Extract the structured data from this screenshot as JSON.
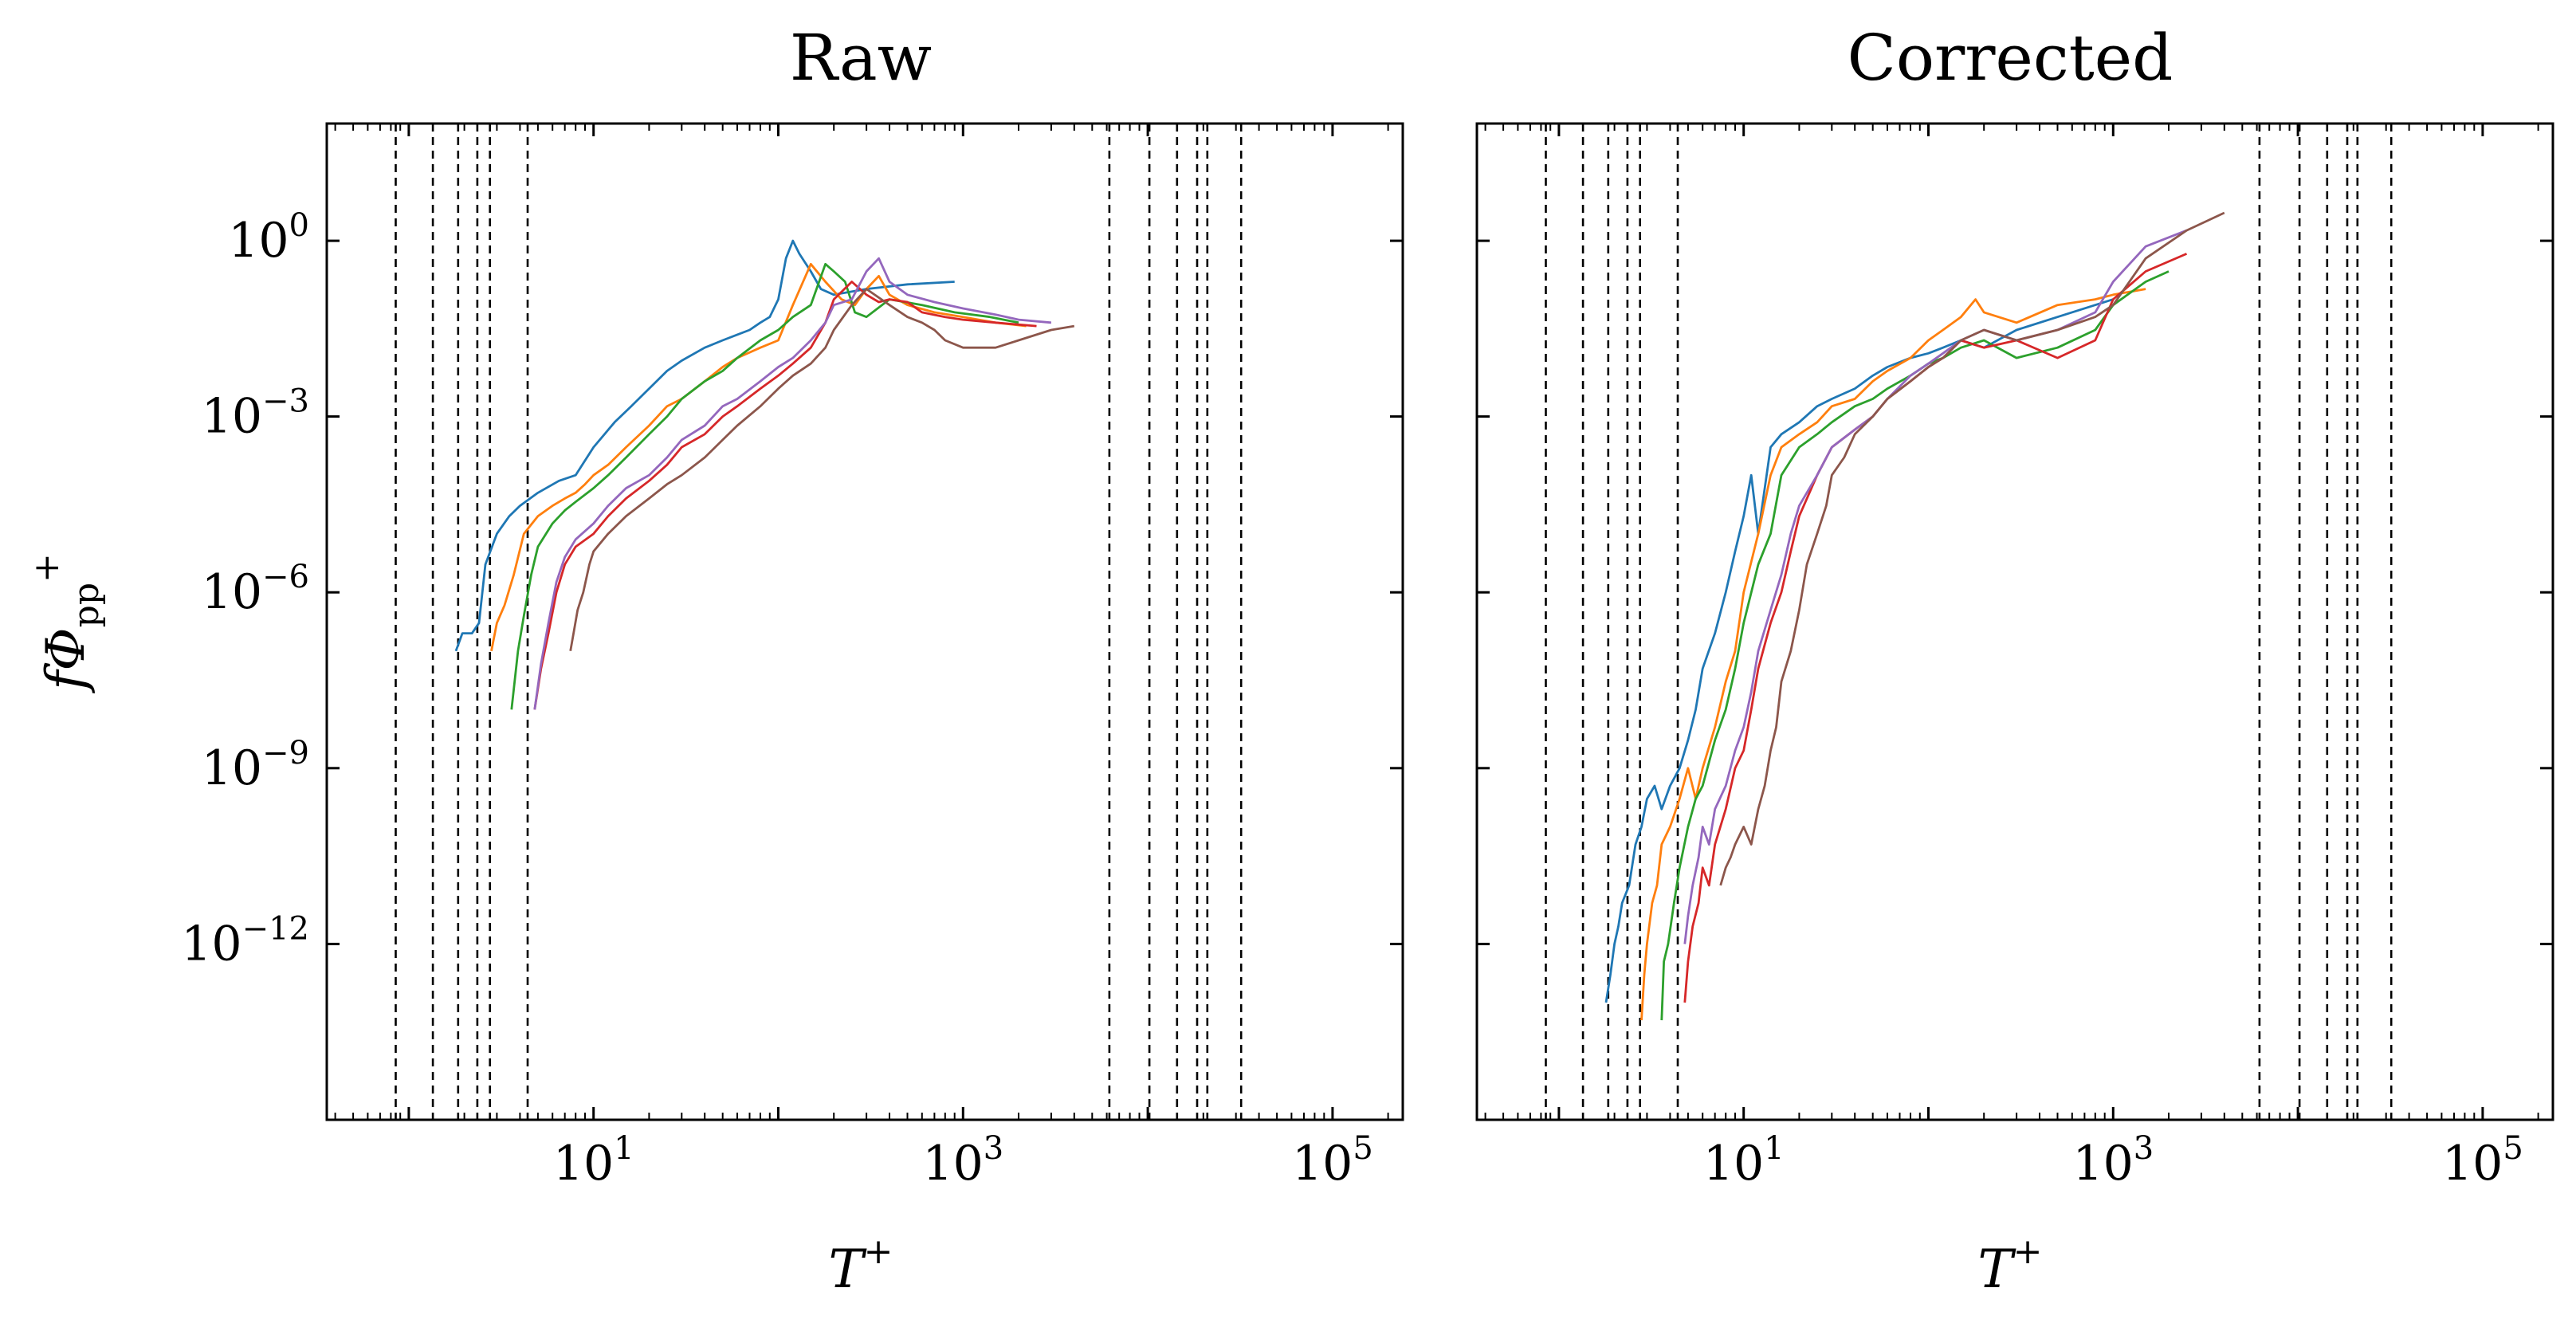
{
  "chart_data": [
    {
      "type": "line",
      "title": "Raw",
      "xlabel": "T",
      "xlabel_sup": "+",
      "ylabel": "fΦ",
      "ylabel_sub": "pp",
      "ylabel_sup": "+",
      "xscale": "log",
      "yscale": "log",
      "xlim": [
        0.36,
        240000
      ],
      "ylim": [
        1e-15,
        100.0
      ],
      "x_ticks": [
        {
          "base": "10",
          "exp": "1",
          "value": 10
        },
        {
          "base": "10",
          "exp": "3",
          "value": 1000
        },
        {
          "base": "10",
          "exp": "5",
          "value": 100000
        }
      ],
      "y_ticks": [
        {
          "base": "10",
          "exp": "0",
          "value": 1
        },
        {
          "base": "10",
          "exp": "−3",
          "value": 0.001
        },
        {
          "base": "10",
          "exp": "−6",
          "value": 1e-06
        },
        {
          "base": "10",
          "exp": "−9",
          "value": 1e-09
        },
        {
          "base": "10",
          "exp": "−12",
          "value": 1e-12
        }
      ],
      "grid": false,
      "legend": "none",
      "vertical_lines": [
        0.85,
        1.35,
        1.85,
        2.35,
        2.75,
        4.4,
        6200,
        10200,
        14400,
        18500,
        21000,
        32000
      ],
      "series": [
        {
          "color": "#1f77b4",
          "x": [
            1.8,
            1.95,
            2.2,
            2.4,
            2.6,
            3.0,
            3.5,
            4.0,
            5.0,
            6.5,
            8.0,
            10,
            13,
            16,
            20,
            25,
            30,
            40,
            50,
            60,
            70,
            80,
            90,
            100,
            110,
            120,
            130,
            150,
            170,
            200,
            300,
            500,
            900
          ],
          "y": [
            1e-07,
            2e-07,
            2e-07,
            3e-07,
            3e-06,
            1e-05,
            2e-05,
            3e-05,
            5e-05,
            8e-05,
            0.0001,
            0.0003,
            0.0008,
            0.0015,
            0.003,
            0.006,
            0.009,
            0.015,
            0.02,
            0.025,
            0.03,
            0.04,
            0.05,
            0.1,
            0.5,
            1.0,
            0.6,
            0.3,
            0.15,
            0.12,
            0.15,
            0.18,
            0.2
          ]
        },
        {
          "color": "#ff7f0e",
          "x": [
            2.8,
            3.0,
            3.3,
            3.7,
            4.2,
            5.0,
            6.0,
            7.0,
            8.0,
            9.0,
            10,
            12,
            15,
            20,
            25,
            30,
            40,
            50,
            60,
            80,
            100,
            120,
            150,
            180,
            220,
            260,
            300,
            350,
            400,
            500,
            700,
            1000,
            1500,
            2200
          ],
          "y": [
            1e-07,
            3e-07,
            6e-07,
            2e-06,
            1e-05,
            2e-05,
            3e-05,
            4e-05,
            5e-05,
            7e-05,
            0.0001,
            0.00015,
            0.0003,
            0.0007,
            0.0015,
            0.002,
            0.004,
            0.007,
            0.01,
            0.015,
            0.02,
            0.08,
            0.4,
            0.2,
            0.1,
            0.08,
            0.15,
            0.25,
            0.12,
            0.08,
            0.06,
            0.05,
            0.04,
            0.035
          ]
        },
        {
          "color": "#2ca02c",
          "x": [
            3.6,
            3.9,
            4.2,
            4.6,
            5.0,
            6.0,
            7.0,
            8.0,
            10,
            12,
            15,
            20,
            25,
            30,
            40,
            50,
            60,
            80,
            100,
            120,
            150,
            180,
            200,
            230,
            260,
            300,
            400,
            600,
            900,
            1400,
            2000
          ],
          "y": [
            1e-08,
            1e-07,
            4e-07,
            2e-06,
            6e-06,
            1.5e-05,
            2.5e-05,
            3.5e-05,
            6e-05,
            0.0001,
            0.0002,
            0.0005,
            0.001,
            0.002,
            0.004,
            0.006,
            0.01,
            0.02,
            0.03,
            0.05,
            0.08,
            0.4,
            0.3,
            0.2,
            0.06,
            0.05,
            0.1,
            0.08,
            0.06,
            0.05,
            0.04
          ]
        },
        {
          "color": "#d62728",
          "x": [
            4.8,
            5.2,
            5.7,
            6.3,
            7.0,
            8.0,
            10,
            12,
            15,
            20,
            25,
            30,
            40,
            50,
            60,
            80,
            100,
            120,
            150,
            180,
            200,
            250,
            300,
            350,
            400,
            500,
            600,
            800,
            1000,
            1500,
            2500
          ],
          "y": [
            1e-08,
            5e-08,
            2e-07,
            1e-06,
            3e-06,
            6e-06,
            1e-05,
            2e-05,
            4e-05,
            8e-05,
            0.00015,
            0.0003,
            0.0005,
            0.001,
            0.0015,
            0.003,
            0.005,
            0.008,
            0.015,
            0.04,
            0.1,
            0.2,
            0.12,
            0.09,
            0.1,
            0.09,
            0.06,
            0.05,
            0.045,
            0.04,
            0.035
          ]
        },
        {
          "color": "#9467bd",
          "x": [
            4.8,
            5.2,
            5.7,
            6.3,
            7.0,
            8.0,
            10,
            12,
            15,
            20,
            25,
            30,
            40,
            50,
            60,
            80,
            100,
            120,
            150,
            180,
            200,
            250,
            300,
            350,
            400,
            500,
            700,
            1000,
            1500,
            2000,
            3000
          ],
          "y": [
            1e-08,
            6e-08,
            3e-07,
            1.5e-06,
            4e-06,
            8e-06,
            1.5e-05,
            3e-05,
            6e-05,
            0.0001,
            0.0002,
            0.0004,
            0.0007,
            0.0015,
            0.002,
            0.004,
            0.007,
            0.01,
            0.02,
            0.04,
            0.08,
            0.1,
            0.3,
            0.5,
            0.2,
            0.12,
            0.09,
            0.07,
            0.055,
            0.045,
            0.04
          ]
        },
        {
          "color": "#8c564b",
          "x": [
            7.5,
            7.8,
            8.2,
            8.8,
            9.5,
            10,
            12,
            15,
            20,
            25,
            30,
            40,
            50,
            60,
            80,
            100,
            120,
            150,
            180,
            200,
            250,
            300,
            400,
            500,
            600,
            700,
            800,
            1000,
            1500,
            2000,
            3000,
            4000
          ],
          "y": [
            1e-07,
            2e-07,
            5e-07,
            1e-06,
            3e-06,
            5e-06,
            1e-05,
            2e-05,
            4e-05,
            7e-05,
            0.0001,
            0.0002,
            0.0004,
            0.0007,
            0.0015,
            0.003,
            0.005,
            0.008,
            0.015,
            0.03,
            0.08,
            0.15,
            0.08,
            0.05,
            0.04,
            0.03,
            0.02,
            0.015,
            0.015,
            0.02,
            0.03,
            0.035
          ]
        }
      ]
    },
    {
      "type": "line",
      "title": "Corrected",
      "xlabel": "T",
      "xlabel_sup": "+",
      "xscale": "log",
      "yscale": "log",
      "xlim": [
        0.36,
        240000
      ],
      "ylim": [
        1e-15,
        100.0
      ],
      "x_ticks": [
        {
          "base": "10",
          "exp": "1",
          "value": 10
        },
        {
          "base": "10",
          "exp": "3",
          "value": 1000
        },
        {
          "base": "10",
          "exp": "5",
          "value": 100000
        }
      ],
      "y_ticks": [
        {
          "value": 1
        },
        {
          "value": 0.001
        },
        {
          "value": 1e-06
        },
        {
          "value": 1e-09
        },
        {
          "value": 1e-12
        }
      ],
      "grid": false,
      "legend": "none",
      "vertical_lines": [
        0.85,
        1.35,
        1.85,
        2.35,
        2.75,
        4.4,
        6200,
        10200,
        14400,
        18500,
        21000,
        32000
      ],
      "series": [
        {
          "color": "#1f77b4",
          "x": [
            1.8,
            1.9,
            2.0,
            2.1,
            2.2,
            2.4,
            2.6,
            2.8,
            3.0,
            3.3,
            3.6,
            4.0,
            4.5,
            5.0,
            5.5,
            6.0,
            7.0,
            8.0,
            9.0,
            10,
            11,
            12,
            14,
            16,
            20,
            25,
            30,
            40,
            50,
            60,
            80,
            100,
            120,
            150,
            200,
            300,
            500,
            800,
            1000
          ],
          "y": [
            1e-13,
            3e-13,
            1e-12,
            2e-12,
            5e-12,
            1e-11,
            5e-11,
            1e-10,
            3e-10,
            5e-10,
            2e-10,
            5e-10,
            1e-09,
            3e-09,
            1e-08,
            5e-08,
            2e-07,
            1e-06,
            5e-06,
            2e-05,
            0.0001,
            1e-05,
            0.0003,
            0.0005,
            0.0008,
            0.0015,
            0.002,
            0.003,
            0.005,
            0.007,
            0.01,
            0.012,
            0.015,
            0.02,
            0.015,
            0.03,
            0.05,
            0.08,
            0.1
          ]
        },
        {
          "color": "#ff7f0e",
          "x": [
            2.8,
            2.9,
            3.0,
            3.2,
            3.4,
            3.6,
            4.0,
            4.5,
            5.0,
            5.5,
            6.0,
            7.0,
            8.0,
            9.0,
            10,
            12,
            14,
            16,
            20,
            25,
            30,
            40,
            50,
            60,
            80,
            100,
            120,
            150,
            180,
            200,
            300,
            500,
            800,
            1000,
            1500
          ],
          "y": [
            5e-14,
            3e-13,
            1e-12,
            5e-12,
            1e-11,
            5e-11,
            1e-10,
            3e-10,
            1e-09,
            3e-10,
            1e-09,
            5e-09,
            3e-08,
            1e-07,
            1e-06,
            1e-05,
            0.0001,
            0.0003,
            0.0005,
            0.0008,
            0.0015,
            0.002,
            0.004,
            0.006,
            0.01,
            0.02,
            0.03,
            0.05,
            0.1,
            0.06,
            0.04,
            0.08,
            0.1,
            0.12,
            0.15
          ]
        },
        {
          "color": "#2ca02c",
          "x": [
            3.6,
            3.7,
            3.9,
            4.2,
            4.5,
            5.0,
            5.5,
            6.0,
            7.0,
            8.0,
            9.0,
            10,
            12,
            14,
            16,
            20,
            25,
            30,
            40,
            50,
            60,
            80,
            100,
            120,
            150,
            200,
            300,
            500,
            800,
            1000,
            1500,
            2000
          ],
          "y": [
            5e-14,
            5e-13,
            1e-12,
            5e-12,
            2e-11,
            1e-10,
            3e-10,
            5e-10,
            3e-09,
            1e-08,
            5e-08,
            3e-07,
            3e-06,
            1e-05,
            0.0001,
            0.0003,
            0.0005,
            0.0008,
            0.0015,
            0.002,
            0.003,
            0.005,
            0.008,
            0.01,
            0.015,
            0.02,
            0.01,
            0.015,
            0.03,
            0.08,
            0.2,
            0.3
          ]
        },
        {
          "color": "#d62728",
          "x": [
            4.8,
            5.0,
            5.3,
            5.7,
            6.0,
            6.5,
            7.0,
            8.0,
            9.0,
            10,
            11,
            12,
            14,
            16,
            18,
            20,
            25,
            30,
            40,
            50,
            60,
            80,
            100,
            120,
            150,
            200,
            300,
            500,
            800,
            1000,
            1500,
            2500
          ],
          "y": [
            1e-13,
            5e-13,
            2e-12,
            5e-12,
            2e-11,
            1e-11,
            5e-11,
            2e-10,
            1e-09,
            2e-09,
            1e-08,
            5e-08,
            3e-07,
            1e-06,
            5e-06,
            2e-05,
            0.0001,
            0.0003,
            0.0006,
            0.001,
            0.002,
            0.004,
            0.007,
            0.01,
            0.02,
            0.015,
            0.02,
            0.01,
            0.02,
            0.1,
            0.3,
            0.6
          ]
        },
        {
          "color": "#9467bd",
          "x": [
            4.8,
            5.0,
            5.3,
            5.7,
            6.0,
            6.5,
            7.0,
            8.0,
            9.0,
            10,
            11,
            12,
            14,
            16,
            18,
            20,
            25,
            30,
            40,
            50,
            60,
            80,
            100,
            120,
            150,
            200,
            300,
            500,
            800,
            1000,
            1500,
            2500
          ],
          "y": [
            1e-12,
            3e-12,
            1e-11,
            3e-11,
            1e-10,
            5e-11,
            2e-10,
            5e-10,
            2e-09,
            5e-09,
            2e-08,
            1e-07,
            5e-07,
            2e-06,
            1e-05,
            3e-05,
            0.0001,
            0.0003,
            0.0006,
            0.001,
            0.002,
            0.005,
            0.008,
            0.012,
            0.02,
            0.03,
            0.02,
            0.03,
            0.06,
            0.2,
            0.8,
            1.5
          ]
        },
        {
          "color": "#8c564b",
          "x": [
            7.5,
            8.0,
            8.5,
            9.0,
            10,
            11,
            12,
            13,
            14,
            15,
            16,
            18,
            20,
            22,
            25,
            28,
            30,
            35,
            40,
            50,
            60,
            80,
            100,
            120,
            150,
            200,
            300,
            500,
            800,
            1000,
            1500,
            2500,
            4000
          ],
          "y": [
            1e-11,
            2e-11,
            3e-11,
            5e-11,
            1e-10,
            5e-11,
            2e-10,
            5e-10,
            2e-09,
            5e-09,
            3e-08,
            1e-07,
            5e-07,
            3e-06,
            1e-05,
            3e-05,
            0.0001,
            0.0002,
            0.0005,
            0.001,
            0.002,
            0.004,
            0.007,
            0.01,
            0.02,
            0.03,
            0.02,
            0.03,
            0.05,
            0.08,
            0.5,
            1.5,
            3.0
          ]
        }
      ]
    }
  ]
}
